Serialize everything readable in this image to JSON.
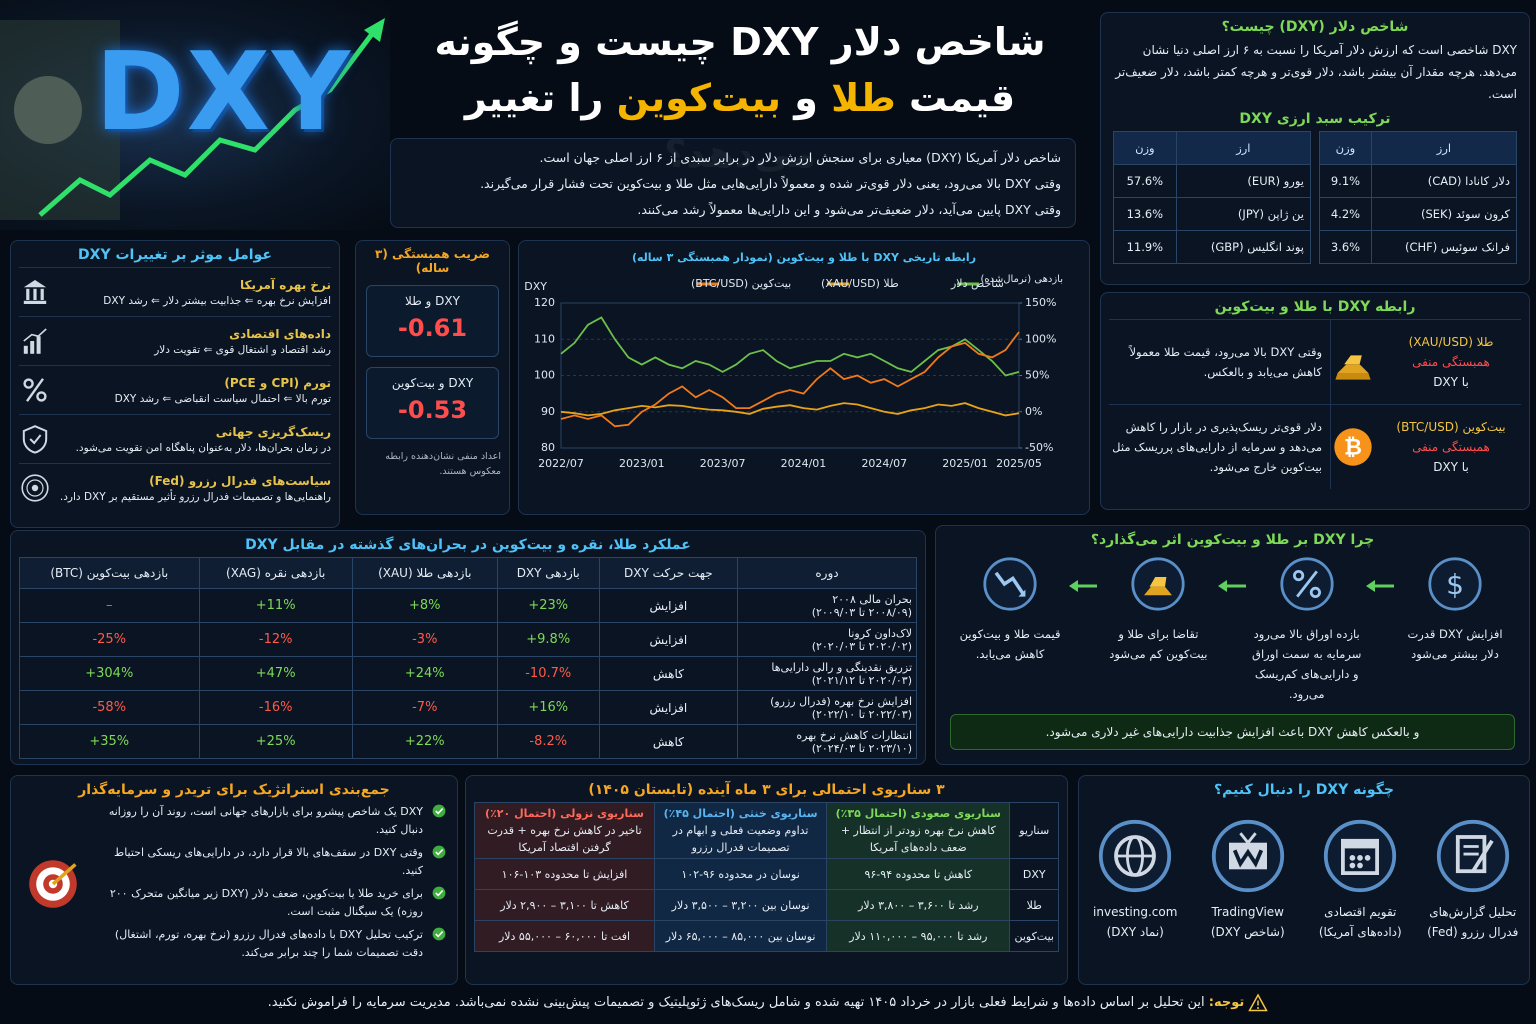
{
  "hero": {
    "logo": "DXY"
  },
  "title": {
    "line1": "شاخص دلار DXY چیست و چگونه",
    "line2": [
      "قیمت",
      "طلا",
      "و",
      "بیت‌کوین",
      "را تغییر می‌دهد؟"
    ]
  },
  "intro": [
    "شاخص دلار آمریکا (DXY) معیاری برای سنجش ارزش دلار در برابر سبدی از ۶ ارز اصلی جهان است.",
    "وقتی DXY بالا می‌رود، یعنی دلار قوی‌تر شده و معمولاً دارایی‌هایی مثل طلا و بیت‌کوین تحت فشار قرار می‌گیرند.",
    "وقتی DXY پایین می‌آید، دلار ضعیف‌تر می‌شود و این دارایی‌ها معمولاً رشد می‌کنند."
  ],
  "definition": {
    "title": "شاخص دلار (DXY) چیست؟",
    "text": "DXY شاخصی است که ارزش دلار آمریکا را نسبت به ۶ ارز اصلی دنیا نشان می‌دهد. هرچه مقدار آن بیشتر باشد، دلار قوی‌تر و هرچه کمتر باشد، دلار ضعیف‌تر است."
  },
  "basket": {
    "title": "ترکیب سبد ارزی DXY",
    "tables": [
      {
        "headers": [
          "ارز",
          "وزن"
        ],
        "rows": [
          [
            "دلار کانادا (CAD)",
            "9.1%"
          ],
          [
            "کرون سوئد (SEK)",
            "4.2%"
          ],
          [
            "فرانک سوئیس (CHF)",
            "3.6%"
          ]
        ]
      },
      {
        "headers": [
          "ارز",
          "وزن"
        ],
        "rows": [
          [
            "یورو (EUR)",
            "57.6%"
          ],
          [
            "ین ژاپن (JPY)",
            "13.6%"
          ],
          [
            "پوند انگلیس (GBP)",
            "11.9%"
          ]
        ]
      }
    ]
  },
  "relation": {
    "title": "رابطه DXY با طلا و بیت‌کوین",
    "items": [
      {
        "asset": "طلا (XAU/USD)",
        "corr": "همبستگی منفی",
        "with": "با DXY",
        "text": "وقتی DXY بالا می‌رود، قیمت طلا معمولاً کاهش می‌یابد و بالعکس."
      },
      {
        "asset": "بیت‌کوین (BTC/USD)",
        "corr": "همبستگی منفی",
        "with": "با DXY",
        "text": "دلار قوی‌تر ریسک‌پذیری در بازار را کاهش می‌دهد و سرمایه از دارایی‌های پرریسک مثل بیت‌کوین خارج می‌شود."
      }
    ]
  },
  "factors": {
    "title": "عوامل موثر بر تغییرات DXY",
    "items": [
      {
        "title": "نرخ بهره آمریکا",
        "text": "افزایش نرخ بهره ⇐ جذابیت بیشتر دلار ⇐ رشد DXY"
      },
      {
        "title": "داده‌های اقتصادی",
        "text": "رشد اقتصاد و اشتغال قوی ⇐ تقویت دلار"
      },
      {
        "title": "تورم (CPI و PCE)",
        "text": "تورم بالا ⇐ احتمال سیاست انقباضی ⇐ رشد DXY"
      },
      {
        "title": "ریسک‌گریزی جهانی",
        "text": "در زمان بحران‌ها، دلار به‌عنوان پناهگاه امن تقویت می‌شود."
      },
      {
        "title": "سیاست‌های فدرال رزرو (Fed)",
        "text": "راهنمایی‌ها و تصمیمات فدرال رزرو تأثیر مستقیم بر DXY دارد."
      }
    ]
  },
  "correlation": {
    "title": "ضریب همبستگی (۳ ساله)",
    "items": [
      {
        "label": "DXY و طلا",
        "value": -0.61
      },
      {
        "label": "DXY و بیت‌کوین",
        "value": -0.53
      }
    ],
    "note": "اعداد منفی نشان‌دهنده رابطه معکوس هستند."
  },
  "chart_data": {
    "type": "line",
    "title": "رابطه تاریخی DXY با طلا و بیت‌کوین (نمودار همبستگی ۳ ساله)",
    "y_label": "DXY",
    "y2_label": "بازدهی (نرمال‌شده)",
    "x": [
      "2022/07",
      "2022/08",
      "2022/09",
      "2022/10",
      "2022/11",
      "2022/12",
      "2023/01",
      "2023/02",
      "2023/03",
      "2023/04",
      "2023/05",
      "2023/06",
      "2023/07",
      "2023/08",
      "2023/09",
      "2023/10",
      "2023/11",
      "2023/12",
      "2024/01",
      "2024/02",
      "2024/03",
      "2024/04",
      "2024/05",
      "2024/06",
      "2024/07",
      "2024/08",
      "2024/09",
      "2024/10",
      "2024/11",
      "2024/12",
      "2025/01",
      "2025/02",
      "2025/03",
      "2025/04",
      "2025/05"
    ],
    "xticks": [
      "2022/07",
      "2023/01",
      "2023/07",
      "2024/01",
      "2024/07",
      "2025/01",
      "2025/05"
    ],
    "ylim": [
      80,
      120
    ],
    "yticks": [
      80,
      90,
      100,
      110,
      120
    ],
    "y2lim": [
      -50,
      150
    ],
    "y2ticks": [
      {
        "value": -50,
        "label": "-50%"
      },
      {
        "value": 0,
        "label": "0%"
      },
      {
        "value": 50,
        "label": "50%"
      },
      {
        "value": 100,
        "label": "100%"
      },
      {
        "value": 150,
        "label": "150%"
      }
    ],
    "grid": true,
    "series": [
      {
        "name": "شاخص دلار",
        "color": "#6cc04a",
        "values": [
          106,
          109,
          114,
          116,
          110,
          105,
          103,
          105,
          103,
          102,
          104,
          103,
          101,
          103,
          106,
          107,
          104,
          102,
          103,
          104,
          104,
          106,
          105,
          106,
          104,
          102,
          101,
          104,
          107,
          108,
          110,
          107,
          104,
          100,
          101
        ]
      },
      {
        "name": "طلا (XAU/USD)",
        "color": "#e8a317",
        "axis": "y2",
        "values": [
          0,
          -2,
          -5,
          -3,
          2,
          5,
          8,
          6,
          9,
          8,
          5,
          3,
          2,
          0,
          -3,
          4,
          7,
          9,
          5,
          3,
          8,
          12,
          10,
          5,
          0,
          -3,
          2,
          5,
          10,
          8,
          12,
          5,
          0,
          -5,
          -2
        ]
      },
      {
        "name": "بیت‌کوین (BTC/USD)",
        "color": "#f07a1a",
        "axis": "y2",
        "values": [
          -10,
          -5,
          -10,
          -5,
          -20,
          -18,
          0,
          10,
          25,
          35,
          20,
          30,
          20,
          5,
          5,
          15,
          25,
          30,
          25,
          45,
          60,
          45,
          50,
          40,
          45,
          35,
          45,
          55,
          75,
          90,
          95,
          80,
          75,
          85,
          110
        ]
      }
    ]
  },
  "crisis": {
    "title": "عملکرد طلا، نقره و بیت‌کوین در بحران‌های گذشته در مقابل DXY",
    "headers": [
      "دوره",
      "جهت حرکت DXY",
      "بازدهی DXY",
      "بازدهی طلا (XAU)",
      "بازدهی نقره (XAG)",
      "بازدهی بیت‌کوین (BTC)"
    ],
    "rows": [
      {
        "period": "بحران مالی ۲۰۰۸",
        "dates": "(۲۰۰۸/۰۹ تا ۲۰۰۹/۰۳)",
        "direction": "افزایش",
        "dxy": "+23%",
        "gold": "+8%",
        "silver": "+11%",
        "btc": "–"
      },
      {
        "period": "لاک‌داون کرونا",
        "dates": "(۲۰۲۰/۰۲ تا ۲۰۲۰/۰۳)",
        "direction": "افزایش",
        "dxy": "+9.8%",
        "gold": "-3%",
        "silver": "-12%",
        "btc": "-25%"
      },
      {
        "period": "تزریق نقدینگی و رالی دارایی‌ها",
        "dates": "(۲۰۲۰/۰۳ تا ۲۰۲۱/۱۲)",
        "direction": "کاهش",
        "dxy": "-10.7%",
        "gold": "+24%",
        "silver": "+47%",
        "btc": "+304%"
      },
      {
        "period": "افزایش نرخ بهره (فدرال رزرو)",
        "dates": "(۲۰۲۲/۰۳ تا ۲۰۲۲/۱۰)",
        "direction": "افزایش",
        "dxy": "+16%",
        "gold": "-7%",
        "silver": "-16%",
        "btc": "-58%"
      },
      {
        "period": "انتظارات کاهش نرخ بهره",
        "dates": "(۲۰۲۳/۱۰ تا ۲۰۲۴/۰۳)",
        "direction": "کاهش",
        "dxy": "-8.2%",
        "gold": "+22%",
        "silver": "+25%",
        "btc": "+35%"
      }
    ]
  },
  "why": {
    "title": "چرا DXY بر طلا و بیت‌کوین اثر می‌گذارد؟",
    "steps": [
      "افزایش DXY قدرت دلار بیشتر می‌شود",
      "بازده اوراق بالا می‌رود سرمایه به سمت اوراق و دارایی‌های کم‌ریسک می‌رود.",
      "تقاضا برای طلا و بیت‌کوین کم می‌شود",
      "قیمت طلا و بیت‌کوین کاهش می‌یابد."
    ],
    "conclusion": "و بالعکس کاهش DXY باعث افزایش جذابیت دارایی‌های غیر دلاری می‌شود."
  },
  "strategy": {
    "title": "جمع‌بندی استراتژیک برای تریدر و سرمایه‌گذار",
    "items": [
      "DXY یک شاخص پیشرو برای بازارهای جهانی است، روند آن را روزانه دنبال کنید.",
      "وقتی DXY در سقف‌های بالا قرار دارد، در دارایی‌های ریسکی احتیاط کنید.",
      "برای خرید طلا یا بیت‌کوین، ضعف دلار (DXY زیر میانگین متحرک ۲۰۰ روزه) یک سیگنال مثبت است.",
      "ترکیب تحلیل DXY با داده‌های فدرال رزرو (نرخ بهره، تورم، اشتغال) دقت تصمیمات شما را چند برابر می‌کند."
    ]
  },
  "scenarios": {
    "title": "۳ سناریوی احتمالی برای ۳ ماه آینده (تابستان ۱۴۰۵)",
    "corner": "سناریو",
    "columns": [
      {
        "name": "سناریوی صعودی (احتمال ۳۵٪)",
        "desc": "کاهش نرخ بهره زودتر از انتظار + ضعف داده‌های آمریکا"
      },
      {
        "name": "سناریوی خنثی (احتمال ۴۵٪)",
        "desc": "تداوم وضعیت فعلی و ابهام در تصمیمات فدرال رزرو"
      },
      {
        "name": "سناریوی نزولی (احتمال ۲۰٪)",
        "desc": "تاخیر در کاهش نرخ بهره + قدرت گرفتن اقتصاد آمریکا"
      }
    ],
    "rows": [
      {
        "label": "DXY",
        "values": [
          "کاهش تا محدوده ۹۴-۹۶",
          "نوسان در محدوده ۹۶-۱۰۲",
          "افزایش تا محدوده ۱۰۳-۱۰۶"
        ]
      },
      {
        "label": "طلا",
        "values": [
          "رشد تا ۳,۶۰۰ – ۳,۸۰۰ دلار",
          "نوسان بین ۳,۲۰۰ – ۳,۵۰۰ دلار",
          "کاهش تا ۳,۱۰۰ – ۲,۹۰۰ دلار"
        ]
      },
      {
        "label": "بیت‌کوین",
        "values": [
          "رشد تا ۹۵,۰۰۰ – ۱۱۰,۰۰۰ دلار",
          "نوسان بین ۸۵,۰۰۰ – ۶۵,۰۰۰ دلار",
          "افت تا ۶۰,۰۰۰ – ۵۵,۰۰۰ دلار"
        ]
      }
    ]
  },
  "follow": {
    "title": "چگونه DXY را دنبال کنیم؟",
    "items": [
      {
        "name": "تحلیل گزارش‌های",
        "sub": "فدرال رزرو (Fed)"
      },
      {
        "name": "تقویم اقتصادی",
        "sub": "(داده‌های آمریکا)"
      },
      {
        "name": "TradingView",
        "sub": "(شاخص DXY)"
      },
      {
        "name": "investing.com",
        "sub": "(نماد DXY)"
      }
    ]
  },
  "footer": {
    "label": "توجه:",
    "text": "این تحلیل بر اساس داده‌ها و شرایط فعلی بازار در خرداد ۱۴۰۵ تهیه شده و شامل ریسک‌های ژئوپلیتیک و تصمیمات پیش‌بینی نشده نمی‌باشد. مدیریت سرمایه را فراموش نکنید."
  }
}
